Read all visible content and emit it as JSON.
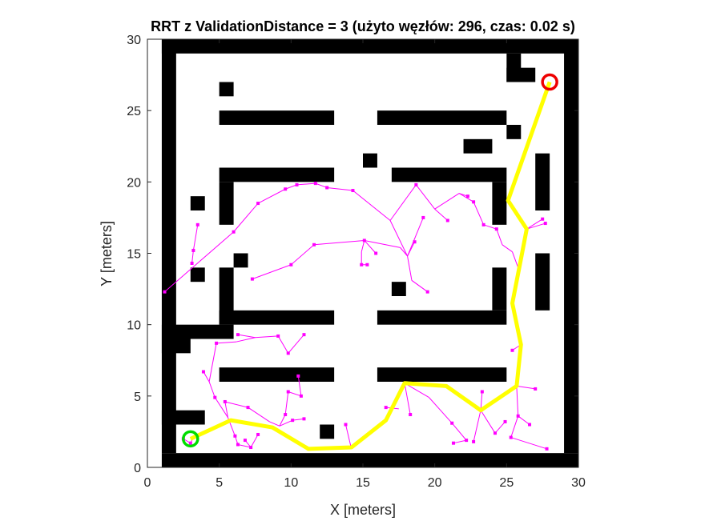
{
  "chart_data": {
    "type": "scatter",
    "title": "RRT z ValidationDistance = 3 (użyto węzłów: 296, czas: 0.02 s)",
    "xlabel": "X [meters]",
    "ylabel": "Y [meters]",
    "xlim": [
      0,
      30
    ],
    "ylim": [
      0,
      30
    ],
    "xticks": [
      "0",
      "5",
      "10",
      "15",
      "20",
      "25",
      "30"
    ],
    "yticks": [
      "0",
      "5",
      "10",
      "15",
      "20",
      "25",
      "30"
    ],
    "grid": false,
    "colors": {
      "obstacle": "#000000",
      "tree": "#ff00ff",
      "path": "#ffff00",
      "start": "#00dd00",
      "goal": "#ee0000"
    },
    "start": [
      3,
      2
    ],
    "goal": [
      28,
      27
    ],
    "obstacles": [
      [
        1,
        29,
        29,
        1
      ],
      [
        1,
        1,
        1,
        29
      ],
      [
        29,
        1,
        1,
        29
      ],
      [
        1,
        0,
        29,
        1
      ],
      [
        25,
        27,
        1,
        2
      ],
      [
        25,
        27,
        2,
        1
      ],
      [
        5,
        26,
        1,
        1
      ],
      [
        5,
        24,
        8,
        1
      ],
      [
        16,
        24,
        9,
        1
      ],
      [
        25,
        23,
        1,
        1
      ],
      [
        22,
        22,
        2,
        1
      ],
      [
        15,
        21,
        1,
        1
      ],
      [
        27,
        18,
        1,
        4
      ],
      [
        5,
        20,
        8,
        1
      ],
      [
        5,
        17,
        1,
        3
      ],
      [
        17,
        20,
        8,
        1
      ],
      [
        24,
        17,
        1,
        3
      ],
      [
        3,
        18,
        1,
        1
      ],
      [
        6,
        14,
        1,
        1
      ],
      [
        3,
        13,
        1,
        1
      ],
      [
        27,
        11,
        1,
        4
      ],
      [
        5,
        10,
        1,
        4
      ],
      [
        17,
        12,
        1,
        1
      ],
      [
        5,
        10,
        8,
        1
      ],
      [
        16,
        10,
        9,
        1
      ],
      [
        24,
        11,
        1,
        3
      ],
      [
        1,
        9,
        5,
        1
      ],
      [
        1,
        8,
        2,
        1
      ],
      [
        5,
        6,
        8,
        1
      ],
      [
        16,
        6,
        9,
        1
      ],
      [
        1,
        3,
        3,
        1
      ],
      [
        12,
        2,
        1,
        1
      ]
    ],
    "tree_edges": [
      [
        1.2,
        12.3,
        6.0,
        16.5
      ],
      [
        6.0,
        16.5,
        7.7,
        18.5
      ],
      [
        7.7,
        18.5,
        9.6,
        19.5
      ],
      [
        9.6,
        19.5,
        10.4,
        19.8
      ],
      [
        10.4,
        19.8,
        11.7,
        19.9
      ],
      [
        11.7,
        19.9,
        12.5,
        19.6
      ],
      [
        12.5,
        19.6,
        14.3,
        19.4
      ],
      [
        14.3,
        19.4,
        16.9,
        17.3
      ],
      [
        16.9,
        17.3,
        18.7,
        19.8
      ],
      [
        18.7,
        19.8,
        20.0,
        18.1
      ],
      [
        20.0,
        18.1,
        20.9,
        17.3
      ],
      [
        20.0,
        18.1,
        21.7,
        19.2
      ],
      [
        21.7,
        19.2,
        22.3,
        19.0
      ],
      [
        21.7,
        19.2,
        22.7,
        18.6
      ],
      [
        22.7,
        18.6,
        23.4,
        17.0
      ],
      [
        23.4,
        17.0,
        24.3,
        16.7
      ],
      [
        24.3,
        16.7,
        24.7,
        15.6
      ],
      [
        24.7,
        15.6,
        25.4,
        15.1
      ],
      [
        25.4,
        15.1,
        25.8,
        14.0
      ],
      [
        16.9,
        17.3,
        18.1,
        14.8
      ],
      [
        18.1,
        14.8,
        18.6,
        15.8
      ],
      [
        18.1,
        14.8,
        18.4,
        13.1
      ],
      [
        18.4,
        13.1,
        19.5,
        12.3
      ],
      [
        19.2,
        17.5,
        18.1,
        14.8
      ],
      [
        18.1,
        14.8,
        17.6,
        15.4
      ],
      [
        17.6,
        15.4,
        15.1,
        15.9
      ],
      [
        15.1,
        15.9,
        11.6,
        15.6
      ],
      [
        11.6,
        15.6,
        10.0,
        14.2
      ],
      [
        10.0,
        14.2,
        7.3,
        13.2
      ],
      [
        15.1,
        15.9,
        14.9,
        15.1
      ],
      [
        14.9,
        15.1,
        14.9,
        14.2
      ],
      [
        14.9,
        14.2,
        15.3,
        14.2
      ],
      [
        15.1,
        15.9,
        15.9,
        15.0
      ],
      [
        18.4,
        13.1,
        19.5,
        12.3
      ],
      [
        3.2,
        15.2,
        3.1,
        14.3
      ],
      [
        3.2,
        15.2,
        3.5,
        17.0
      ],
      [
        6.3,
        9.3,
        7.5,
        9.1
      ],
      [
        7.5,
        9.1,
        9.1,
        9.2
      ],
      [
        9.1,
        9.2,
        9.8,
        8.0
      ],
      [
        9.8,
        8.0,
        10.9,
        9.3
      ],
      [
        7.5,
        9.1,
        6.2,
        8.8
      ],
      [
        6.2,
        8.8,
        4.8,
        8.7
      ],
      [
        4.8,
        8.7,
        4.3,
        6.0
      ],
      [
        4.3,
        6.0,
        3.9,
        6.7
      ],
      [
        4.3,
        6.0,
        4.7,
        4.9
      ],
      [
        4.7,
        4.9,
        5.6,
        3.5
      ],
      [
        5.6,
        3.5,
        6.1,
        2.2
      ],
      [
        6.1,
        2.2,
        6.3,
        1.6
      ],
      [
        6.3,
        1.6,
        7.2,
        1.4
      ],
      [
        7.2,
        1.4,
        7.7,
        2.3
      ],
      [
        7.2,
        1.4,
        6.8,
        1.9
      ],
      [
        5.6,
        3.5,
        5.4,
        4.6
      ],
      [
        5.4,
        4.6,
        7.0,
        4.2
      ],
      [
        7.0,
        4.2,
        8.5,
        3.2
      ],
      [
        8.5,
        3.2,
        9.2,
        2.9
      ],
      [
        9.2,
        2.9,
        9.6,
        3.7
      ],
      [
        9.6,
        3.7,
        9.8,
        5.3
      ],
      [
        9.8,
        5.3,
        10.7,
        5.0
      ],
      [
        10.7,
        5.0,
        10.5,
        6.4
      ],
      [
        9.2,
        2.9,
        10.1,
        3.3
      ],
      [
        10.1,
        3.3,
        10.9,
        3.4
      ],
      [
        2.5,
        2.0,
        3.0,
        1.7
      ],
      [
        3.0,
        1.7,
        3.2,
        2.1
      ],
      [
        14.2,
        1.3,
        13.8,
        3.0
      ],
      [
        17.5,
        4.1,
        16.6,
        4.2
      ],
      [
        18.3,
        3.7,
        17.9,
        5.9
      ],
      [
        21.2,
        3.1,
        19.6,
        4.9
      ],
      [
        19.6,
        4.9,
        17.9,
        5.9
      ],
      [
        21.2,
        3.1,
        22.2,
        1.9
      ],
      [
        22.2,
        1.9,
        21.3,
        1.7
      ],
      [
        23.2,
        4.0,
        22.7,
        1.8
      ],
      [
        23.2,
        4.0,
        23.3,
        5.3
      ],
      [
        23.2,
        4.0,
        24.2,
        2.4
      ],
      [
        24.2,
        2.4,
        24.9,
        3.2
      ],
      [
        25.7,
        5.7,
        25.8,
        3.6
      ],
      [
        25.8,
        3.6,
        25.3,
        2.1
      ],
      [
        25.3,
        2.1,
        27.8,
        1.3
      ],
      [
        25.8,
        3.6,
        26.6,
        3.0
      ],
      [
        25.7,
        5.7,
        27.0,
        5.5
      ],
      [
        26.0,
        8.6,
        25.4,
        8.2
      ],
      [
        26.4,
        16.7,
        27.7,
        17.1
      ],
      [
        26.4,
        16.7,
        27.5,
        17.4
      ]
    ],
    "tree_nodes": [
      [
        1.2,
        12.3
      ],
      [
        6.0,
        16.5
      ],
      [
        7.7,
        18.5
      ],
      [
        9.6,
        19.5
      ],
      [
        10.4,
        19.8
      ],
      [
        11.7,
        19.9
      ],
      [
        12.5,
        19.6
      ],
      [
        14.3,
        19.4
      ],
      [
        18.7,
        19.8
      ],
      [
        20.9,
        17.3
      ],
      [
        22.3,
        19.0
      ],
      [
        23.4,
        17.0
      ],
      [
        24.3,
        16.7
      ],
      [
        18.6,
        15.8
      ],
      [
        19.5,
        12.3
      ],
      [
        19.2,
        17.5
      ],
      [
        15.1,
        15.9
      ],
      [
        11.6,
        15.6
      ],
      [
        10.0,
        14.2
      ],
      [
        7.3,
        13.2
      ],
      [
        14.9,
        14.2
      ],
      [
        15.3,
        14.2
      ],
      [
        15.9,
        15.0
      ],
      [
        3.1,
        14.3
      ],
      [
        3.5,
        17.0
      ],
      [
        3.2,
        15.2
      ],
      [
        6.3,
        9.3
      ],
      [
        9.1,
        9.2
      ],
      [
        9.8,
        8.0
      ],
      [
        10.9,
        9.3
      ],
      [
        4.8,
        8.7
      ],
      [
        3.9,
        6.7
      ],
      [
        4.7,
        4.9
      ],
      [
        6.1,
        2.2
      ],
      [
        6.3,
        1.6
      ],
      [
        7.2,
        1.4
      ],
      [
        7.7,
        2.3
      ],
      [
        6.8,
        1.9
      ],
      [
        5.4,
        4.6
      ],
      [
        7.0,
        4.2
      ],
      [
        9.6,
        3.7
      ],
      [
        9.8,
        5.3
      ],
      [
        10.7,
        5.0
      ],
      [
        10.5,
        6.4
      ],
      [
        10.1,
        3.3
      ],
      [
        10.9,
        3.4
      ],
      [
        2.5,
        2.0
      ],
      [
        3.0,
        1.7
      ],
      [
        13.8,
        3.0
      ],
      [
        16.6,
        4.2
      ],
      [
        18.3,
        3.7
      ],
      [
        21.2,
        3.1
      ],
      [
        22.2,
        1.9
      ],
      [
        21.3,
        1.7
      ],
      [
        22.7,
        1.8
      ],
      [
        23.3,
        5.3
      ],
      [
        24.2,
        2.4
      ],
      [
        24.9,
        3.2
      ],
      [
        25.8,
        3.6
      ],
      [
        25.3,
        2.1
      ],
      [
        27.8,
        1.3
      ],
      [
        26.6,
        3.0
      ],
      [
        27.0,
        5.5
      ],
      [
        25.4,
        8.2
      ],
      [
        27.7,
        17.1
      ],
      [
        27.5,
        17.4
      ],
      [
        22.7,
        18.6
      ]
    ],
    "path": [
      [
        3.0,
        2.0
      ],
      [
        5.8,
        3.3
      ],
      [
        8.7,
        2.8
      ],
      [
        11.2,
        1.3
      ],
      [
        14.2,
        1.4
      ],
      [
        16.6,
        3.3
      ],
      [
        17.9,
        5.9
      ],
      [
        20.8,
        5.7
      ],
      [
        23.2,
        4.0
      ],
      [
        25.7,
        5.7
      ],
      [
        26.0,
        8.6
      ],
      [
        25.4,
        11.5
      ],
      [
        26.0,
        14.6
      ],
      [
        26.4,
        16.7
      ],
      [
        25.1,
        18.7
      ],
      [
        28.0,
        27.0
      ]
    ]
  }
}
